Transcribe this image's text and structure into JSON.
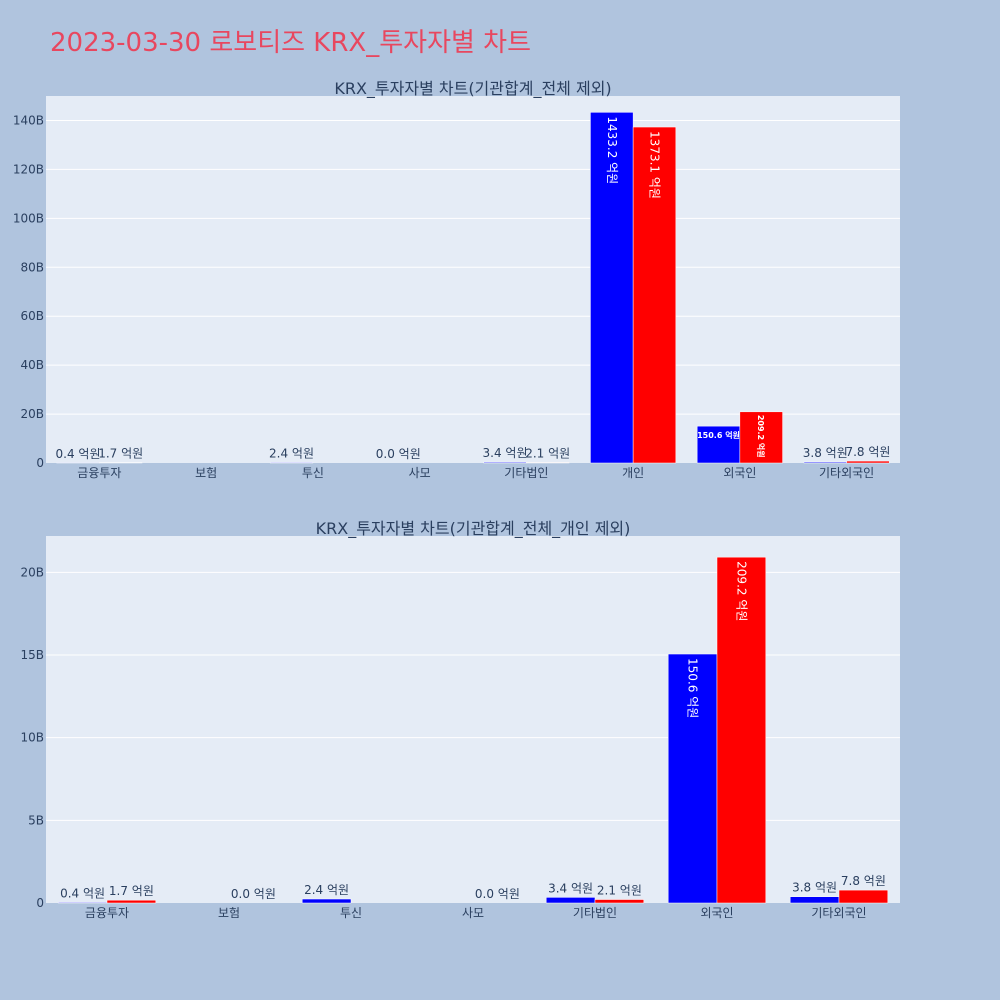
{
  "page": {
    "title": "2023-03-30 로보티즈 KRX_투자자별 차트",
    "colors": {
      "background": "#b0c4de",
      "title": "#e8475f",
      "plot_bg": "#e5ecf6"
    }
  },
  "chart_data": [
    {
      "type": "bar",
      "title": "KRX_투자자별 차트(기관합계_전체 제외)",
      "xlabel": "",
      "ylabel": "",
      "categories": [
        "금융투자",
        "보험",
        "투신",
        "사모",
        "기타법인",
        "개인",
        "외국인",
        "기타외국인"
      ],
      "ylim": [
        0,
        150000000000
      ],
      "yticks": [
        0,
        20000000000,
        40000000000,
        60000000000,
        80000000000,
        100000000000,
        120000000000,
        140000000000
      ],
      "ytick_labels": [
        "0",
        "20B",
        "40B",
        "60B",
        "80B",
        "100B",
        "120B",
        "140B"
      ],
      "grid": true,
      "series": [
        {
          "color": "#0000ff",
          "values": [
            40000000,
            null,
            240000000,
            0,
            340000000,
            143320000000,
            15060000000,
            380000000
          ],
          "labels": [
            "0.4 억원",
            "",
            "2.4 억원",
            "0.0 억원",
            "3.4 억원",
            "1433.2 억원",
            "150.6 억원",
            "3.8 억원"
          ]
        },
        {
          "color": "#ff0000",
          "values": [
            170000000,
            null,
            null,
            null,
            210000000,
            137310000000,
            20920000000,
            780000000
          ],
          "labels": [
            "1.7 억원",
            "",
            "",
            "",
            "2.1 억원",
            "1373.1 억원",
            "209.2 억원",
            "7.8 억원"
          ]
        }
      ]
    },
    {
      "type": "bar",
      "title": "KRX_투자자별 차트(기관합계_전체_개인 제외)",
      "xlabel": "",
      "ylabel": "",
      "categories": [
        "금융투자",
        "보험",
        "투신",
        "사모",
        "기타법인",
        "외국인",
        "기타외국인"
      ],
      "ylim": [
        0,
        22200000000
      ],
      "yticks": [
        0,
        5000000000,
        10000000000,
        15000000000,
        20000000000
      ],
      "ytick_labels": [
        "0",
        "5B",
        "10B",
        "15B",
        "20B"
      ],
      "grid": true,
      "series": [
        {
          "color": "#0000ff",
          "values": [
            40000000,
            null,
            240000000,
            null,
            340000000,
            15060000000,
            380000000
          ],
          "labels": [
            "0.4 억원",
            "",
            "2.4 억원",
            "",
            "3.4 억원",
            "150.6 억원",
            "3.8 억원"
          ]
        },
        {
          "color": "#ff0000",
          "values": [
            170000000,
            0,
            null,
            0,
            210000000,
            20920000000,
            780000000
          ],
          "labels": [
            "1.7 억원",
            "0.0 억원",
            "",
            "0.0 억원",
            "2.1 억원",
            "209.2 억원",
            "7.8 억원"
          ]
        }
      ]
    }
  ]
}
